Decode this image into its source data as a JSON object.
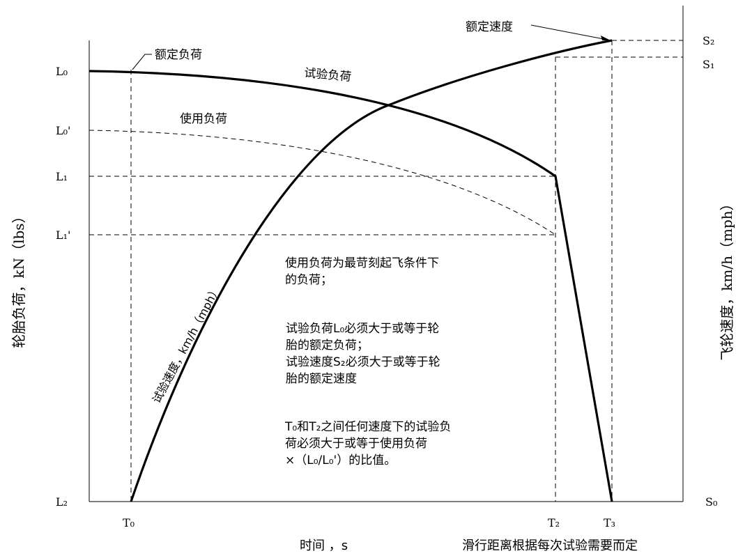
{
  "axes": {
    "left_title": "轮胎负荷，kN（lbs）",
    "right_title": "飞轮速度，km/h（mph）",
    "bottom_title": "时间 ，s",
    "bottom_note": "滑行距离根据每次试验需要而定"
  },
  "left_ticks": [
    "L₀",
    "L₀'",
    "L₁",
    "L₁'",
    "L₂"
  ],
  "right_ticks": [
    "S₂",
    "S₁",
    "S₀"
  ],
  "bottom_ticks": [
    "T₀",
    "T₂",
    "T₃"
  ],
  "curve_labels": {
    "rated_load": "额定负荷",
    "rated_speed": "额定速度",
    "test_load": "试验负荷",
    "service_load": "使用负荷",
    "test_speed": "试验速度，km/h（mph）"
  },
  "notes": {
    "note1": [
      "使用负荷为最苛刻起飞条件下",
      "的负荷；"
    ],
    "note2": [
      "试验负荷L₀必须大于或等于轮",
      "胎的额定负荷；",
      "试验速度S₂必须大于或等于轮",
      "胎的额定速度"
    ],
    "note3": [
      "T₀和T₂之间任何速度下的试验负",
      "荷必须大于或等于使用负荷",
      "×（L₀/L₀'）的比值。"
    ]
  }
}
